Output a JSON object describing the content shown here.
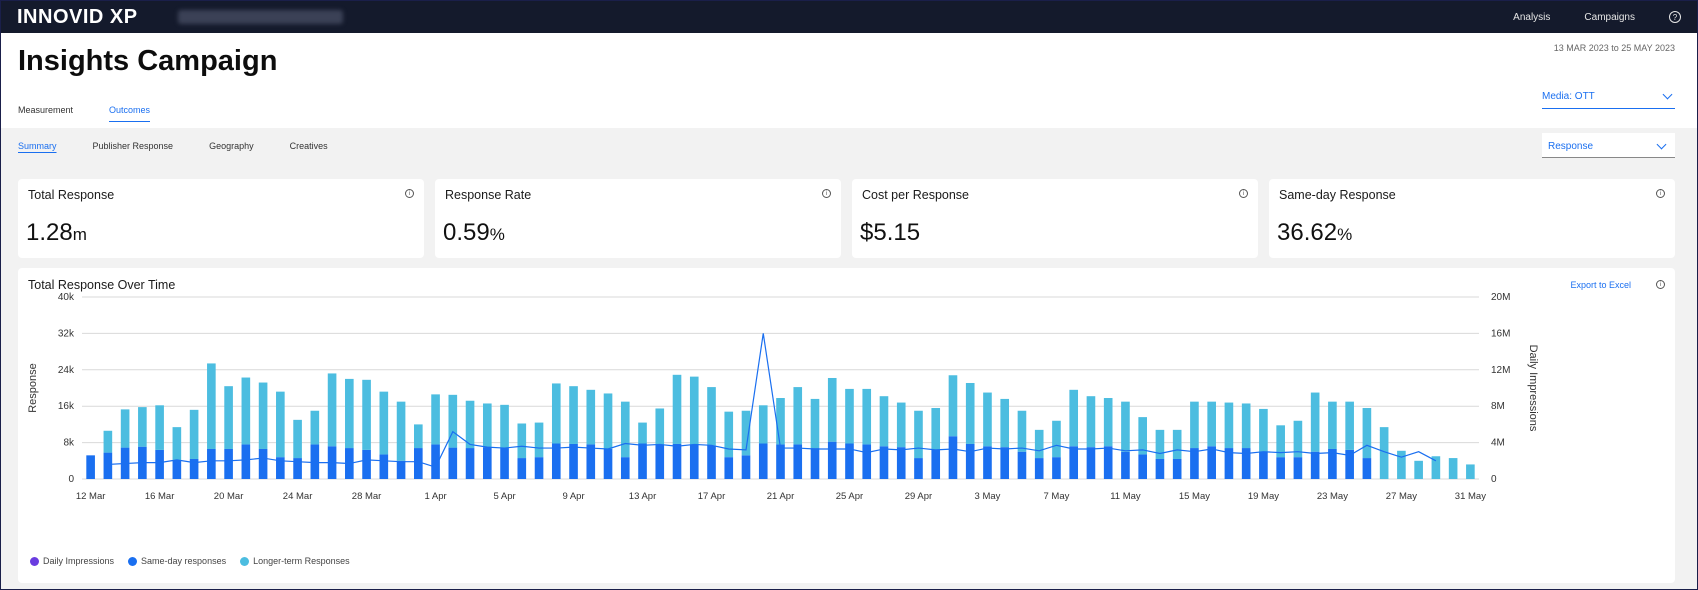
{
  "app": {
    "logo": "INNOVID XP",
    "nav": [
      "Analysis",
      "Campaigns"
    ]
  },
  "header": {
    "title": "Insights Campaign",
    "date_range": "13 MAR 2023 to 25 MAY 2023",
    "tabs": [
      "Measurement",
      "Outcomes"
    ],
    "active_tab": "Outcomes",
    "media_select": "Media: OTT"
  },
  "subnav": {
    "tabs": [
      "Summary",
      "Publisher Response",
      "Geography",
      "Creatives"
    ],
    "active": "Summary",
    "response_select": "Response"
  },
  "kpis": [
    {
      "label": "Total Response",
      "value": "1.28",
      "unit": "m"
    },
    {
      "label": "Response Rate",
      "value": "0.59",
      "unit": "%"
    },
    {
      "label": "Cost per Response",
      "value": "$5.15",
      "unit": ""
    },
    {
      "label": "Same-day Response",
      "value": "36.62",
      "unit": "%"
    }
  ],
  "chart": {
    "title": "Total Response Over Time",
    "export_label": "Export to Excel"
  },
  "colors": {
    "same_day": "#1a6ff0",
    "longer_term": "#4cbde0",
    "impressions": "#6a3ce0",
    "accent": "#1a6ff0"
  },
  "chart_data": {
    "type": "bar",
    "ylabel": "Response",
    "y2label": "Daily Impressions",
    "ylim": [
      0,
      40000
    ],
    "y2lim": [
      0,
      20000000
    ],
    "y_ticks": [
      "0",
      "8k",
      "16k",
      "24k",
      "32k",
      "40k"
    ],
    "y2_ticks": [
      "0",
      "4M",
      "8M",
      "12M",
      "16M",
      "20M"
    ],
    "x_tick_labels": [
      "12 Mar",
      "16 Mar",
      "20 Mar",
      "24 Mar",
      "28 Mar",
      "1 Apr",
      "5 Apr",
      "9 Apr",
      "13 Apr",
      "17 Apr",
      "21 Apr",
      "25 Apr",
      "29 Apr",
      "3 May",
      "7 May",
      "11 May",
      "15 May",
      "19 May",
      "23 May",
      "27 May",
      "31 May"
    ],
    "start_date": "2023-03-12",
    "legend": [
      "Daily Impressions",
      "Same-day responses",
      "Longer-term Responses"
    ],
    "series": [
      {
        "name": "Same-day responses",
        "values": [
          5200,
          5800,
          6900,
          7100,
          6400,
          4200,
          4400,
          6600,
          6600,
          7600,
          6600,
          4800,
          4600,
          7600,
          7200,
          6800,
          6400,
          5400,
          4000,
          6800,
          7600,
          6900,
          6800,
          7000,
          6800,
          4600,
          4800,
          7800,
          7700,
          7600,
          6600,
          4800,
          7800,
          7500,
          7700,
          7500,
          7400,
          4800,
          5200,
          7800,
          7600,
          7600,
          6800,
          8200,
          7800,
          7600,
          7200,
          7000,
          4600,
          6400,
          9400,
          7700,
          7200,
          7000,
          6000,
          4600,
          4800,
          7200,
          7000,
          7200,
          6000,
          5400,
          4400,
          4400,
          6800,
          7200,
          6800,
          6800,
          6000,
          4800,
          4800,
          6000,
          6600,
          6400,
          4600,
          0,
          0,
          0,
          0,
          0,
          0
        ]
      },
      {
        "name": "Longer-term Responses",
        "values": [
          0,
          4800,
          8400,
          8700,
          9800,
          7200,
          10800,
          18800,
          13800,
          14700,
          14600,
          14400,
          8400,
          7400,
          16000,
          15200,
          15400,
          13800,
          13000,
          5200,
          11000,
          11600,
          10400,
          9600,
          9500,
          7600,
          7600,
          13200,
          12700,
          12000,
          12200,
          12200,
          4600,
          8000,
          15200,
          15000,
          12800,
          10000,
          9800,
          8400,
          10200,
          12600,
          10800,
          14000,
          12000,
          12200,
          11000,
          9800,
          10400,
          9200,
          13400,
          13400,
          11800,
          10600,
          9000,
          6200,
          8000,
          12400,
          11200,
          10600,
          11000,
          8200,
          6400,
          6400,
          10200,
          9800,
          10000,
          9800,
          9400,
          7000,
          8000,
          13000,
          10400,
          10600,
          11000,
          11400,
          6200,
          4000,
          5000,
          4600,
          3200
        ]
      },
      {
        "name": "Daily Impressions",
        "values": [
          1600000,
          1700000,
          1800000,
          1800000,
          2100000,
          1800000,
          2000000,
          2000000,
          2100000,
          2300000,
          2000000,
          1900000,
          1800000,
          1800000,
          1700000,
          2100000,
          2000000,
          1900000,
          1900000,
          1300000,
          5200000,
          3800000,
          3500000,
          3400000,
          3600000,
          3400000,
          3400000,
          3500000,
          3400000,
          3300000,
          3900000,
          3700000,
          3800000,
          3600000,
          3800000,
          3700000,
          3300000,
          3200000,
          16000000,
          3400000,
          3400000,
          3300000,
          3300000,
          3300000,
          2900000,
          3300000,
          3200000,
          3400000,
          3200000,
          3300000,
          3000000,
          3400000,
          3300000,
          3400000,
          3100000,
          3700000,
          3300000,
          3300000,
          3400000,
          3100000,
          3200000,
          2800000,
          3200000,
          3000000,
          3300000,
          2900000,
          2800000,
          3000000,
          2900000,
          3000000,
          2800000,
          2900000,
          2600000,
          3700000,
          3000000,
          2400000,
          3000000,
          2000000
        ]
      }
    ]
  }
}
